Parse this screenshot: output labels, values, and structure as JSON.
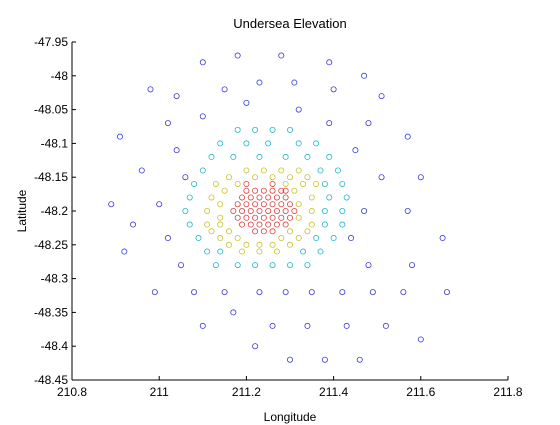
{
  "chart_data": {
    "type": "scatter",
    "title": "Undersea Elevation",
    "xlabel": "Longitude",
    "ylabel": "Latitude",
    "xlim": [
      210.8,
      211.8
    ],
    "ylim": [
      -48.45,
      -47.95
    ],
    "xticks": [
      "210.8",
      "211",
      "211.2",
      "211.4",
      "211.6",
      "211.8"
    ],
    "xtick_values": [
      210.8,
      211.0,
      211.2,
      211.4,
      211.6,
      211.8
    ],
    "yticks": [
      "-47.95",
      "-48",
      "-48.05",
      "-48.1",
      "-48.15",
      "-48.2",
      "-48.25",
      "-48.3",
      "-48.35",
      "-48.4",
      "-48.45"
    ],
    "ytick_values": [
      -47.95,
      -48.0,
      -48.05,
      -48.1,
      -48.15,
      -48.2,
      -48.25,
      -48.3,
      -48.35,
      -48.4,
      -48.45
    ],
    "marker": "open circle",
    "grid": false,
    "series": [
      {
        "color": "#3b3bd6",
        "points": [
          [
            211.1,
            -47.98
          ],
          [
            211.18,
            -47.97
          ],
          [
            211.28,
            -47.97
          ],
          [
            211.39,
            -47.98
          ],
          [
            211.47,
            -48.0
          ],
          [
            210.98,
            -48.02
          ],
          [
            211.04,
            -48.03
          ],
          [
            211.15,
            -48.02
          ],
          [
            211.23,
            -48.01
          ],
          [
            211.31,
            -48.01
          ],
          [
            211.4,
            -48.02
          ],
          [
            211.51,
            -48.03
          ],
          [
            211.02,
            -48.07
          ],
          [
            211.1,
            -48.06
          ],
          [
            211.2,
            -48.04
          ],
          [
            211.32,
            -48.05
          ],
          [
            211.48,
            -48.07
          ],
          [
            211.39,
            -48.07
          ],
          [
            210.91,
            -48.09
          ],
          [
            211.57,
            -48.09
          ],
          [
            211.04,
            -48.11
          ],
          [
            211.45,
            -48.11
          ],
          [
            210.96,
            -48.14
          ],
          [
            211.06,
            -48.15
          ],
          [
            211.51,
            -48.15
          ],
          [
            211.6,
            -48.15
          ],
          [
            210.89,
            -48.19
          ],
          [
            211.0,
            -48.19
          ],
          [
            211.47,
            -48.2
          ],
          [
            211.57,
            -48.2
          ],
          [
            210.94,
            -48.22
          ],
          [
            211.02,
            -48.24
          ],
          [
            211.44,
            -48.24
          ],
          [
            211.65,
            -48.24
          ],
          [
            210.92,
            -48.26
          ],
          [
            211.05,
            -48.28
          ],
          [
            211.48,
            -48.28
          ],
          [
            211.58,
            -48.28
          ],
          [
            210.99,
            -48.32
          ],
          [
            211.08,
            -48.32
          ],
          [
            211.15,
            -48.32
          ],
          [
            211.23,
            -48.32
          ],
          [
            211.29,
            -48.32
          ],
          [
            211.35,
            -48.32
          ],
          [
            211.42,
            -48.32
          ],
          [
            211.49,
            -48.32
          ],
          [
            211.56,
            -48.32
          ],
          [
            211.66,
            -48.32
          ],
          [
            211.17,
            -48.35
          ],
          [
            211.1,
            -48.37
          ],
          [
            211.26,
            -48.37
          ],
          [
            211.34,
            -48.37
          ],
          [
            211.43,
            -48.37
          ],
          [
            211.52,
            -48.37
          ],
          [
            211.6,
            -48.39
          ],
          [
            211.22,
            -48.4
          ],
          [
            211.3,
            -48.42
          ],
          [
            211.38,
            -48.42
          ],
          [
            211.46,
            -48.42
          ]
        ]
      },
      {
        "color": "#20b7c9",
        "points": [
          [
            211.18,
            -48.08
          ],
          [
            211.22,
            -48.08
          ],
          [
            211.26,
            -48.08
          ],
          [
            211.3,
            -48.08
          ],
          [
            211.14,
            -48.1
          ],
          [
            211.2,
            -48.1
          ],
          [
            211.25,
            -48.1
          ],
          [
            211.32,
            -48.1
          ],
          [
            211.36,
            -48.1
          ],
          [
            211.12,
            -48.12
          ],
          [
            211.17,
            -48.12
          ],
          [
            211.23,
            -48.12
          ],
          [
            211.29,
            -48.12
          ],
          [
            211.34,
            -48.12
          ],
          [
            211.39,
            -48.12
          ],
          [
            211.1,
            -48.14
          ],
          [
            211.37,
            -48.14
          ],
          [
            211.41,
            -48.14
          ],
          [
            211.08,
            -48.16
          ],
          [
            211.38,
            -48.16
          ],
          [
            211.42,
            -48.16
          ],
          [
            211.07,
            -48.18
          ],
          [
            211.39,
            -48.18
          ],
          [
            211.43,
            -48.18
          ],
          [
            211.06,
            -48.2
          ],
          [
            211.38,
            -48.2
          ],
          [
            211.42,
            -48.2
          ],
          [
            211.07,
            -48.22
          ],
          [
            211.38,
            -48.22
          ],
          [
            211.42,
            -48.22
          ],
          [
            211.09,
            -48.24
          ],
          [
            211.36,
            -48.24
          ],
          [
            211.4,
            -48.24
          ],
          [
            211.11,
            -48.26
          ],
          [
            211.14,
            -48.26
          ],
          [
            211.33,
            -48.26
          ],
          [
            211.37,
            -48.26
          ],
          [
            211.13,
            -48.28
          ],
          [
            211.18,
            -48.28
          ],
          [
            211.22,
            -48.28
          ],
          [
            211.26,
            -48.28
          ],
          [
            211.3,
            -48.28
          ],
          [
            211.34,
            -48.28
          ]
        ]
      },
      {
        "color": "#c9c22a",
        "points": [
          [
            211.2,
            -48.14
          ],
          [
            211.24,
            -48.14
          ],
          [
            211.28,
            -48.14
          ],
          [
            211.32,
            -48.14
          ],
          [
            211.16,
            -48.15
          ],
          [
            211.22,
            -48.15
          ],
          [
            211.26,
            -48.15
          ],
          [
            211.3,
            -48.15
          ],
          [
            211.34,
            -48.15
          ],
          [
            211.13,
            -48.16
          ],
          [
            211.18,
            -48.16
          ],
          [
            211.29,
            -48.16
          ],
          [
            211.33,
            -48.16
          ],
          [
            211.36,
            -48.16
          ],
          [
            211.12,
            -48.18
          ],
          [
            211.15,
            -48.17
          ],
          [
            211.31,
            -48.17
          ],
          [
            211.35,
            -48.18
          ],
          [
            211.11,
            -48.2
          ],
          [
            211.14,
            -48.19
          ],
          [
            211.32,
            -48.19
          ],
          [
            211.35,
            -48.2
          ],
          [
            211.11,
            -48.22
          ],
          [
            211.14,
            -48.21
          ],
          [
            211.32,
            -48.21
          ],
          [
            211.35,
            -48.22
          ],
          [
            211.12,
            -48.23
          ],
          [
            211.16,
            -48.23
          ],
          [
            211.3,
            -48.23
          ],
          [
            211.34,
            -48.23
          ],
          [
            211.14,
            -48.24
          ],
          [
            211.18,
            -48.24
          ],
          [
            211.28,
            -48.24
          ],
          [
            211.32,
            -48.24
          ],
          [
            211.16,
            -48.25
          ],
          [
            211.2,
            -48.25
          ],
          [
            211.23,
            -48.25
          ],
          [
            211.26,
            -48.25
          ],
          [
            211.3,
            -48.25
          ],
          [
            211.19,
            -48.26
          ],
          [
            211.23,
            -48.26
          ],
          [
            211.27,
            -48.26
          ],
          [
            211.14,
            -48.22
          ]
        ]
      },
      {
        "color": "#d94040",
        "points": [
          [
            211.2,
            -48.17
          ],
          [
            211.22,
            -48.17
          ],
          [
            211.24,
            -48.17
          ],
          [
            211.26,
            -48.17
          ],
          [
            211.28,
            -48.17
          ],
          [
            211.19,
            -48.18
          ],
          [
            211.21,
            -48.18
          ],
          [
            211.23,
            -48.18
          ],
          [
            211.25,
            -48.18
          ],
          [
            211.27,
            -48.18
          ],
          [
            211.29,
            -48.18
          ],
          [
            211.18,
            -48.19
          ],
          [
            211.2,
            -48.19
          ],
          [
            211.22,
            -48.19
          ],
          [
            211.24,
            -48.19
          ],
          [
            211.26,
            -48.19
          ],
          [
            211.28,
            -48.19
          ],
          [
            211.3,
            -48.19
          ],
          [
            211.17,
            -48.2
          ],
          [
            211.19,
            -48.2
          ],
          [
            211.21,
            -48.2
          ],
          [
            211.23,
            -48.2
          ],
          [
            211.25,
            -48.2
          ],
          [
            211.27,
            -48.2
          ],
          [
            211.29,
            -48.2
          ],
          [
            211.31,
            -48.2
          ],
          [
            211.18,
            -48.21
          ],
          [
            211.2,
            -48.21
          ],
          [
            211.22,
            -48.21
          ],
          [
            211.24,
            -48.21
          ],
          [
            211.26,
            -48.21
          ],
          [
            211.28,
            -48.21
          ],
          [
            211.3,
            -48.21
          ],
          [
            211.19,
            -48.22
          ],
          [
            211.21,
            -48.22
          ],
          [
            211.23,
            -48.22
          ],
          [
            211.25,
            -48.22
          ],
          [
            211.27,
            -48.22
          ],
          [
            211.29,
            -48.22
          ],
          [
            211.22,
            -48.23
          ],
          [
            211.24,
            -48.23
          ],
          [
            211.26,
            -48.23
          ],
          [
            211.2,
            -48.16
          ],
          [
            211.26,
            -48.16
          ],
          [
            211.29,
            -48.17
          ]
        ]
      }
    ]
  }
}
